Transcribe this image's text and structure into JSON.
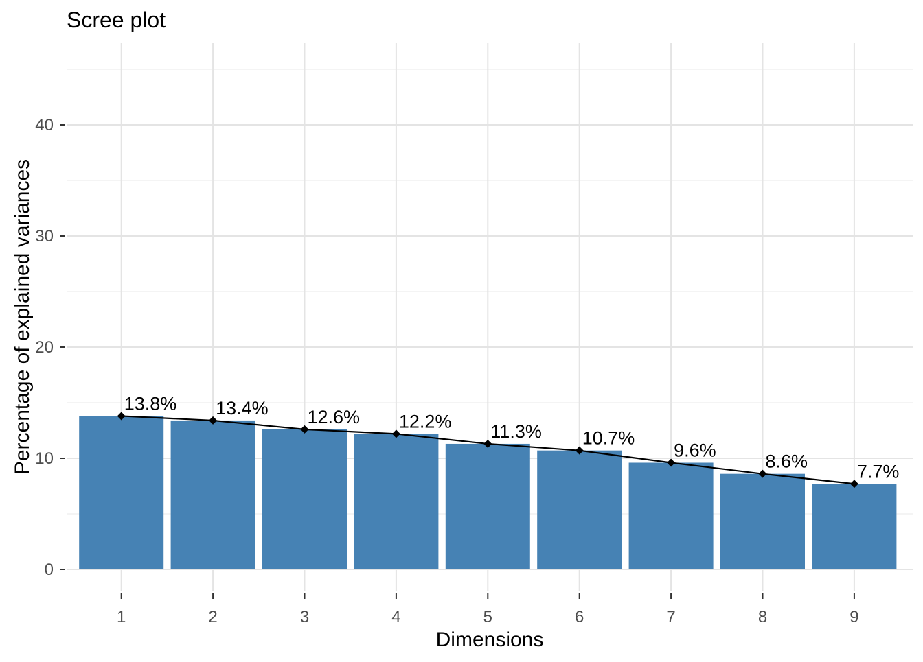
{
  "chart_data": {
    "type": "bar",
    "title": "Scree plot",
    "xlabel": "Dimensions",
    "ylabel": "Percentage of explained variances",
    "categories": [
      "1",
      "2",
      "3",
      "4",
      "5",
      "6",
      "7",
      "8",
      "9"
    ],
    "values": [
      13.8,
      13.4,
      12.6,
      12.2,
      11.3,
      10.7,
      9.6,
      8.6,
      7.7
    ],
    "point_labels": [
      "13.8%",
      "13.4%",
      "12.6%",
      "12.2%",
      "11.3%",
      "10.7%",
      "9.6%",
      "8.6%",
      "7.7%"
    ],
    "series": [
      {
        "name": "eigenvalue-bars",
        "type": "bar",
        "values": [
          13.8,
          13.4,
          12.6,
          12.2,
          11.3,
          10.7,
          9.6,
          8.6,
          7.7
        ]
      },
      {
        "name": "eigenvalue-line",
        "type": "line",
        "values": [
          13.8,
          13.4,
          12.6,
          12.2,
          11.3,
          10.7,
          9.6,
          8.6,
          7.7
        ]
      }
    ],
    "y_ticks": [
      0,
      10,
      20,
      30,
      40
    ],
    "y_minor_ticks": [
      5,
      15,
      25,
      35,
      45
    ],
    "ylim": [
      0,
      45
    ],
    "grid": true,
    "legend": "none",
    "colors": {
      "bar": "#4682B4",
      "line": "#000000",
      "point": "#000000",
      "grid_major": "#E4E4E4",
      "grid_minor": "#F0F0F0",
      "axis_tick": "#333333",
      "tick_text": "#4D4D4D",
      "title_text": "#000000",
      "background": "#FFFFFF"
    }
  }
}
